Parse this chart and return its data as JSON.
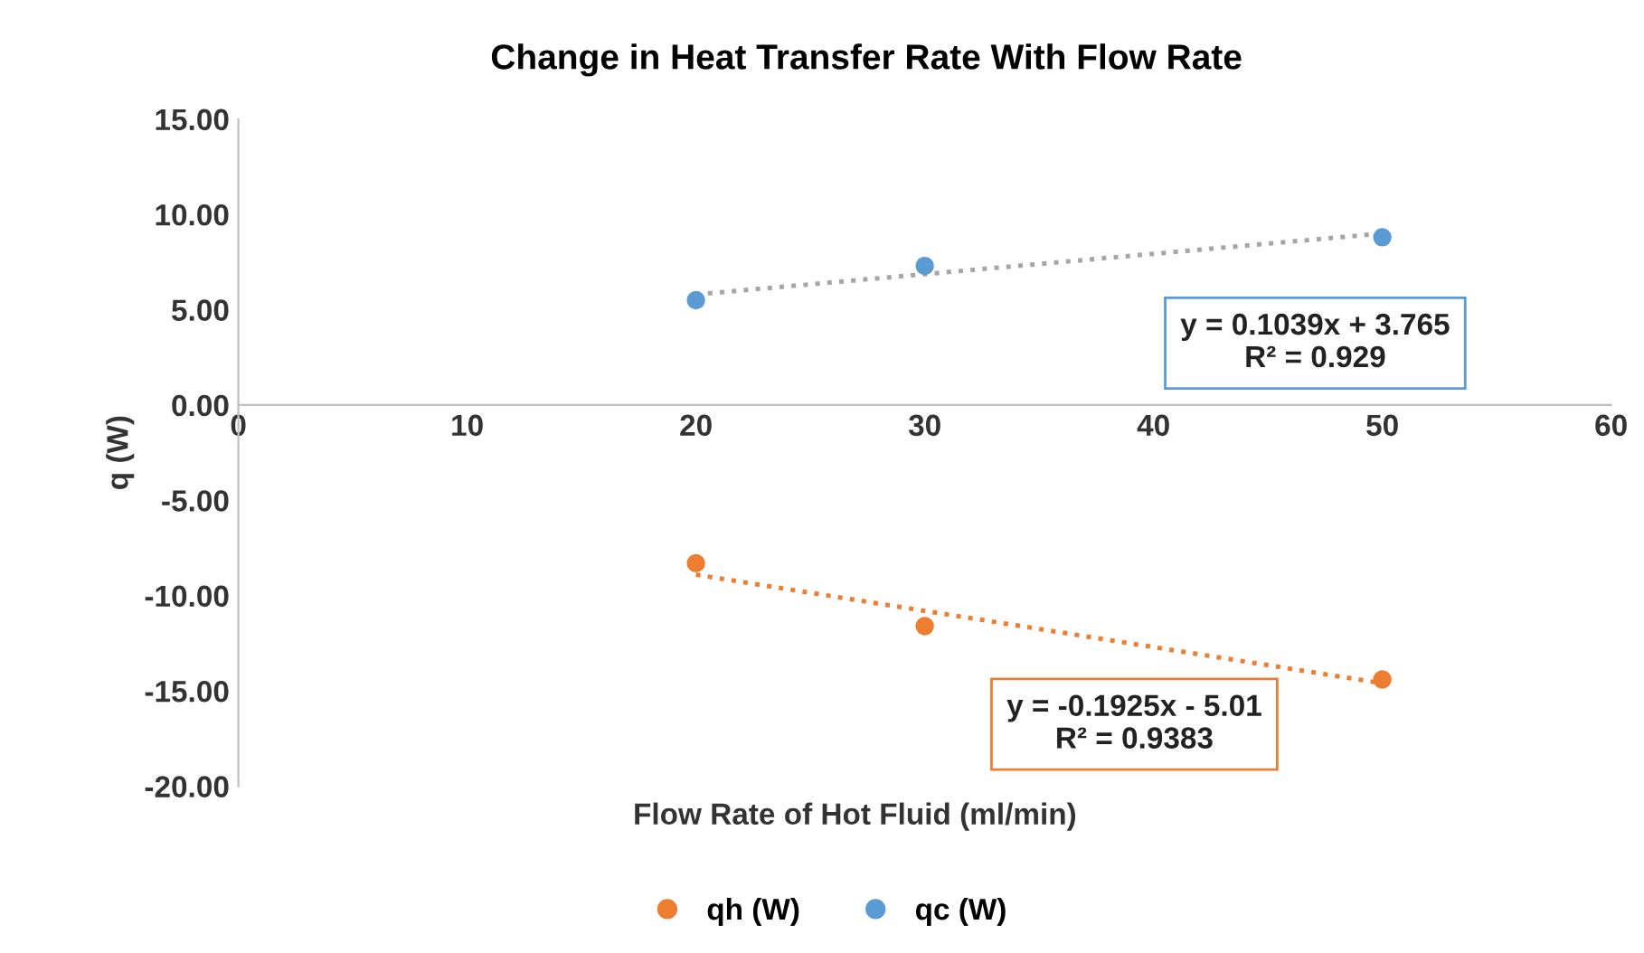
{
  "chart_data": {
    "type": "scatter",
    "title": "Change in Heat Transfer Rate With Flow Rate",
    "xlabel": "Flow Rate of Hot Fluid (ml/min)",
    "ylabel": "q (W)",
    "series": [
      {
        "name": "qh (W)",
        "color": "#ed7d31",
        "x": [
          20,
          30,
          50
        ],
        "values": [
          -8.3,
          -11.6,
          -14.4
        ],
        "marker": "circle"
      },
      {
        "name": "qc (W)",
        "color": "#5b9bd5",
        "x": [
          20,
          30,
          50
        ],
        "values": [
          5.5,
          7.3,
          8.8
        ],
        "marker": "circle"
      },
      {
        "type": "line",
        "color": "#ed7d31",
        "x": [
          20,
          50
        ],
        "values": [
          -8.9,
          -14.6
        ],
        "line_style": "dotted",
        "marker": "none"
      },
      {
        "type": "line",
        "color": "#a5a5a5",
        "x": [
          20,
          50
        ],
        "values": [
          5.8,
          9.0
        ],
        "line_style": "dotted",
        "marker": "none"
      }
    ],
    "annotations": [
      "y = -0.1925x - 5.01\nR² = 0.9383",
      "y = 0.1039x + 3.765\nR² = 0.929"
    ],
    "xlim": [
      0,
      60
    ],
    "xticks": [
      0,
      10,
      20,
      30,
      40,
      50,
      60
    ],
    "ylim": [
      -20,
      15
    ],
    "yticks": [
      {
        "value": -20,
        "label": "-20.00"
      },
      {
        "value": -15,
        "label": "-15.00"
      },
      {
        "value": -10,
        "label": "-10.00"
      },
      {
        "value": -5,
        "label": "-5.00"
      },
      {
        "value": 0,
        "label": "0.00"
      },
      {
        "value": 5,
        "label": "5.00"
      },
      {
        "value": 10,
        "label": "10.00"
      },
      {
        "value": 15,
        "label": "15.00"
      }
    ],
    "grid": false,
    "legend": "bottom"
  }
}
